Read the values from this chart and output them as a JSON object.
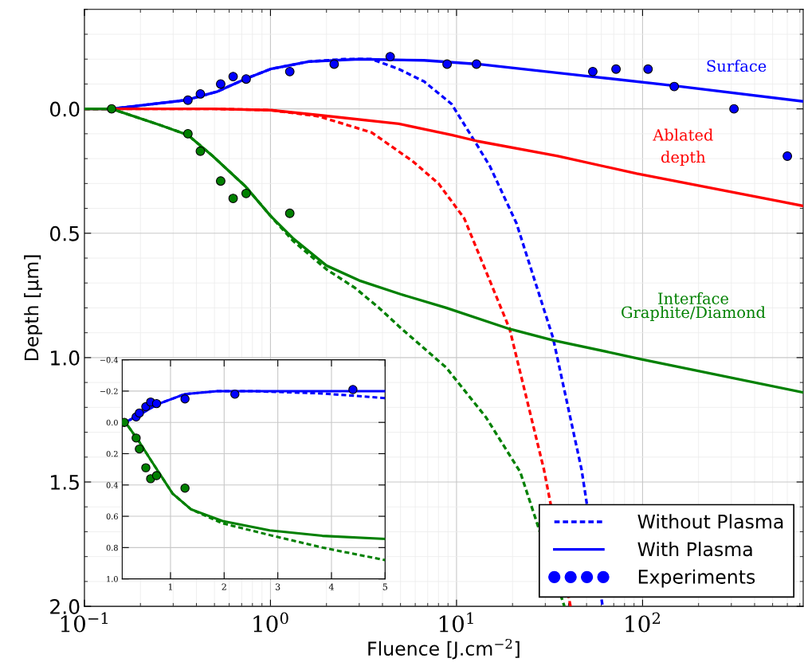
{
  "chart_data": [
    {
      "type": "line",
      "xlabel": "Fluence [J.cm$^{−2}$]",
      "ylabel": "Depth [µm]",
      "log": "x",
      "grid": true,
      "legend": "bottom right",
      "xlim": [
        0.1,
        730
      ],
      "ylim": [
        2.0,
        -0.4
      ],
      "xticks": [
        {
          "value": 0.1,
          "label": "10$^{−1}$"
        },
        {
          "value": 1,
          "label": "10$^{0}$"
        },
        {
          "value": 10,
          "label": "10$^{1}$"
        },
        {
          "value": 100,
          "label": "10$^{2}$"
        }
      ],
      "yticks": [
        {
          "value": 0,
          "label": "0.0"
        },
        {
          "value": 0.5,
          "label": "0.5"
        },
        {
          "value": 1.0,
          "label": "1.0"
        },
        {
          "value": 1.5,
          "label": "1.5"
        },
        {
          "value": 2.0,
          "label": "2.0"
        }
      ],
      "annotations": [
        "Surface",
        "Ablated\ndepth",
        "Interface\nGraphite/Diamond"
      ],
      "series": [
        {
          "name": "Without Plasma",
          "type": "line",
          "line_style": "dashed",
          "color": "#0000ff",
          "x": [
            0.1,
            0.14,
            0.35,
            0.52,
            0.73,
            1.0,
            1.6,
            2.5,
            3.5,
            4.9,
            6.7,
            9.4,
            13,
            15.1,
            21,
            33,
            47,
            61
          ],
          "values": [
            0,
            0,
            -0.035,
            -0.07,
            -0.12,
            -0.16,
            -0.19,
            -0.2,
            -0.2,
            -0.16,
            -0.11,
            -0.02,
            0.15,
            0.23,
            0.46,
            0.92,
            1.45,
            2.0
          ]
        },
        {
          "name": "With Plasma",
          "type": "line",
          "line_style": "solid",
          "color": "#0000ff",
          "x": [
            0.1,
            0.14,
            0.35,
            0.52,
            0.73,
            1.0,
            1.6,
            3,
            6.7,
            13,
            53,
            148,
            730
          ],
          "values": [
            0,
            0,
            -0.035,
            -0.07,
            -0.12,
            -0.16,
            -0.19,
            -0.2,
            -0.195,
            -0.18,
            -0.13,
            -0.093,
            -0.03
          ]
        },
        {
          "type": "line",
          "line_style": "dashed",
          "color": "#ff0000",
          "x": [
            0.1,
            0.5,
            1.0,
            1.82,
            3.5,
            5.8,
            8,
            11,
            19.3,
            29.5,
            41
          ],
          "values": [
            0,
            0,
            0.005,
            0.03,
            0.095,
            0.21,
            0.3,
            0.44,
            0.885,
            1.45,
            2.0
          ]
        },
        {
          "type": "line",
          "line_style": "solid",
          "color": "#ff0000",
          "x": [
            0.1,
            0.5,
            1.0,
            1.82,
            4.9,
            9.4,
            13,
            35,
            93,
            730
          ],
          "values": [
            0,
            0,
            0.005,
            0.025,
            0.06,
            0.105,
            0.13,
            0.19,
            0.26,
            0.39
          ]
        },
        {
          "type": "line",
          "line_style": "dashed",
          "color": "#008000",
          "x": [
            0.1,
            0.14,
            0.255,
            0.36,
            0.49,
            0.73,
            1.0,
            1.32,
            2.0,
            2.85,
            3.83,
            5.0,
            8.8,
            14.4,
            22,
            38
          ],
          "values": [
            0,
            0,
            0.065,
            0.105,
            0.19,
            0.31,
            0.43,
            0.53,
            0.645,
            0.72,
            0.8,
            0.88,
            1.04,
            1.24,
            1.46,
            2.0
          ]
        },
        {
          "type": "line",
          "line_style": "solid",
          "color": "#008000",
          "x": [
            0.1,
            0.14,
            0.255,
            0.36,
            0.49,
            0.73,
            1.0,
            1.32,
            2.0,
            3.0,
            5.0,
            8.8,
            19.3,
            33,
            98,
            730
          ],
          "values": [
            0,
            0,
            0.065,
            0.105,
            0.19,
            0.31,
            0.43,
            0.52,
            0.63,
            0.69,
            0.745,
            0.8,
            0.885,
            0.93,
            1.006,
            1.14
          ]
        },
        {
          "name": "Experiments",
          "type": "scatter",
          "marker": "circle",
          "color": "#0000ff",
          "x": [
            0.36,
            0.42,
            0.54,
            0.63,
            0.74,
            1.27,
            2.2,
            4.4,
            8.9,
            12.8,
            54,
            72,
            107,
            148,
            310,
            600
          ],
          "values": [
            -0.035,
            -0.06,
            -0.1,
            -0.13,
            -0.12,
            -0.15,
            -0.18,
            -0.21,
            -0.18,
            -0.18,
            -0.15,
            -0.16,
            -0.16,
            -0.09,
            0.0,
            0.19
          ]
        },
        {
          "type": "scatter",
          "marker": "circle",
          "color": "#008000",
          "x": [
            0.14,
            0.36,
            0.42,
            0.54,
            0.63,
            0.74,
            1.27
          ],
          "values": [
            0,
            0.1,
            0.17,
            0.29,
            0.36,
            0.34,
            0.42
          ]
        }
      ]
    },
    {
      "type": "line",
      "grid": true,
      "xlim": [
        0.1,
        5
      ],
      "ylim": [
        1.0,
        -0.4
      ],
      "xticks": [
        1,
        2,
        3,
        4,
        5
      ],
      "yticks": [
        {
          "value": -0.4,
          "label": "−0.4"
        },
        {
          "value": -0.2,
          "label": "−0.2"
        },
        {
          "value": 0,
          "label": "0.0"
        },
        {
          "value": 0.2,
          "label": "0.2"
        },
        {
          "value": 0.4,
          "label": "0.4"
        },
        {
          "value": 0.6,
          "label": "0.6"
        },
        {
          "value": 0.8,
          "label": "0.8"
        },
        {
          "value": 1.0,
          "label": "1.0"
        }
      ],
      "series": [
        {
          "type": "line",
          "line_style": "dashed",
          "color": "#0000ff",
          "x": [
            0.1,
            0.157,
            0.4,
            0.75,
            1.26,
            1.87,
            2.5,
            3.83,
            5
          ],
          "values": [
            0,
            0,
            -0.045,
            -0.115,
            -0.18,
            -0.2,
            -0.2,
            -0.185,
            -0.155
          ]
        },
        {
          "type": "line",
          "line_style": "solid",
          "color": "#0000ff",
          "x": [
            0.1,
            0.157,
            0.4,
            0.75,
            1.26,
            1.87,
            3,
            5
          ],
          "values": [
            0,
            0,
            -0.045,
            -0.115,
            -0.18,
            -0.2,
            -0.2,
            -0.2
          ]
        },
        {
          "type": "line",
          "line_style": "dashed",
          "color": "#008000",
          "x": [
            0.1,
            0.16,
            0.4,
            0.65,
            1.04,
            1.38,
            1.97,
            2.85,
            3.83,
            5
          ],
          "values": [
            0,
            0,
            0.115,
            0.25,
            0.455,
            0.555,
            0.645,
            0.72,
            0.8,
            0.88
          ]
        },
        {
          "type": "line",
          "line_style": "solid",
          "color": "#008000",
          "x": [
            0.1,
            0.16,
            0.4,
            0.65,
            1.04,
            1.38,
            1.97,
            2.85,
            3.83,
            5
          ],
          "values": [
            0,
            0,
            0.115,
            0.25,
            0.455,
            0.555,
            0.63,
            0.69,
            0.725,
            0.745
          ]
        },
        {
          "type": "scatter",
          "marker": "circle",
          "color": "#0000ff",
          "x": [
            0.36,
            0.42,
            0.54,
            0.63,
            0.74,
            1.27,
            2.2,
            4.4
          ],
          "values": [
            -0.035,
            -0.06,
            -0.1,
            -0.13,
            -0.12,
            -0.15,
            -0.18,
            -0.21
          ]
        },
        {
          "type": "scatter",
          "marker": "circle",
          "color": "#008000",
          "x": [
            0.14,
            0.36,
            0.42,
            0.54,
            0.63,
            0.74,
            1.27
          ],
          "values": [
            0,
            0.1,
            0.17,
            0.29,
            0.36,
            0.34,
            0.42
          ]
        }
      ]
    }
  ]
}
